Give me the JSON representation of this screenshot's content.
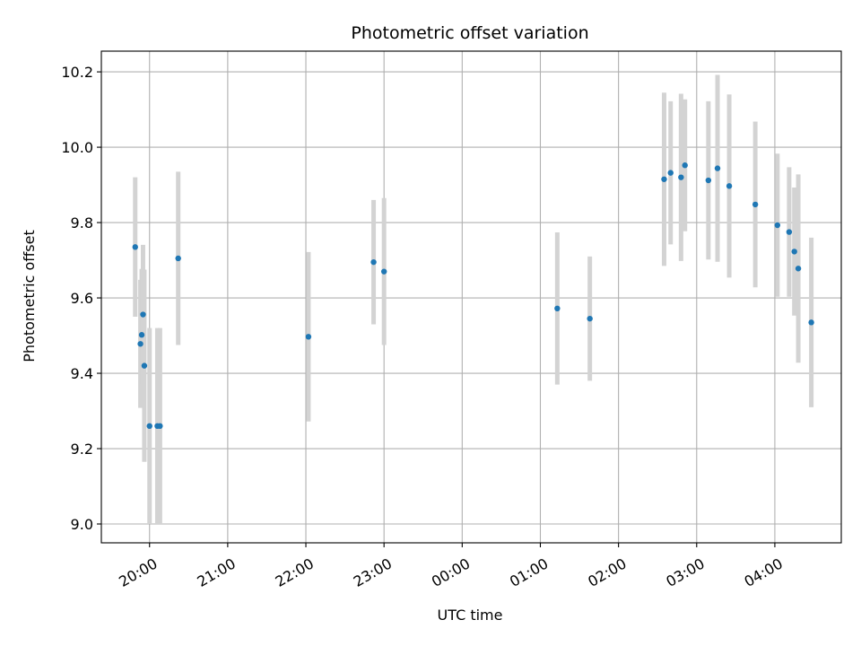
{
  "chart_data": {
    "type": "scatter",
    "title": "Photometric offset variation",
    "xlabel": "UTC time",
    "ylabel": "Photometric offset",
    "ylim": [
      8.95,
      10.255
    ],
    "xlim": [
      "19:23",
      "04:51"
    ],
    "x_ticks": [
      "20:00",
      "21:00",
      "22:00",
      "23:00",
      "00:00",
      "01:00",
      "02:00",
      "03:00",
      "04:00"
    ],
    "y_ticks": [
      "9.0",
      "9.2",
      "9.4",
      "9.6",
      "9.8",
      "10.0",
      "10.2"
    ],
    "grid": true,
    "colors": {
      "marker": "#1f77b4",
      "errorbar": "#d3d3d3",
      "grid": "#b0b0b0",
      "axes": "#000000"
    },
    "series": [
      {
        "x": [
          "19:49",
          "19:53",
          "19:54",
          "19:55",
          "19:56",
          "20:00",
          "20:06",
          "20:08",
          "20:22",
          "22:02",
          "22:52",
          "23:00",
          "01:13",
          "01:38",
          "02:35",
          "02:40",
          "02:48",
          "02:51",
          "03:09",
          "03:16",
          "03:25",
          "03:45",
          "04:02",
          "04:11",
          "04:15",
          "04:18",
          "04:28"
        ],
        "y": [
          9.735,
          9.478,
          9.502,
          9.556,
          9.42,
          9.26,
          9.26,
          9.26,
          9.705,
          9.497,
          9.695,
          9.67,
          9.572,
          9.545,
          9.915,
          9.932,
          9.92,
          9.952,
          9.912,
          9.944,
          9.897,
          9.848,
          9.793,
          9.775,
          9.723,
          9.678,
          9.535
        ],
        "yerr": [
          0.185,
          0.17,
          0.175,
          0.185,
          0.255,
          0.26,
          0.26,
          0.26,
          0.23,
          0.225,
          0.165,
          0.195,
          0.202,
          0.165,
          0.23,
          0.19,
          0.222,
          0.175,
          0.21,
          0.248,
          0.243,
          0.22,
          0.19,
          0.172,
          0.17,
          0.25,
          0.225
        ]
      }
    ]
  }
}
